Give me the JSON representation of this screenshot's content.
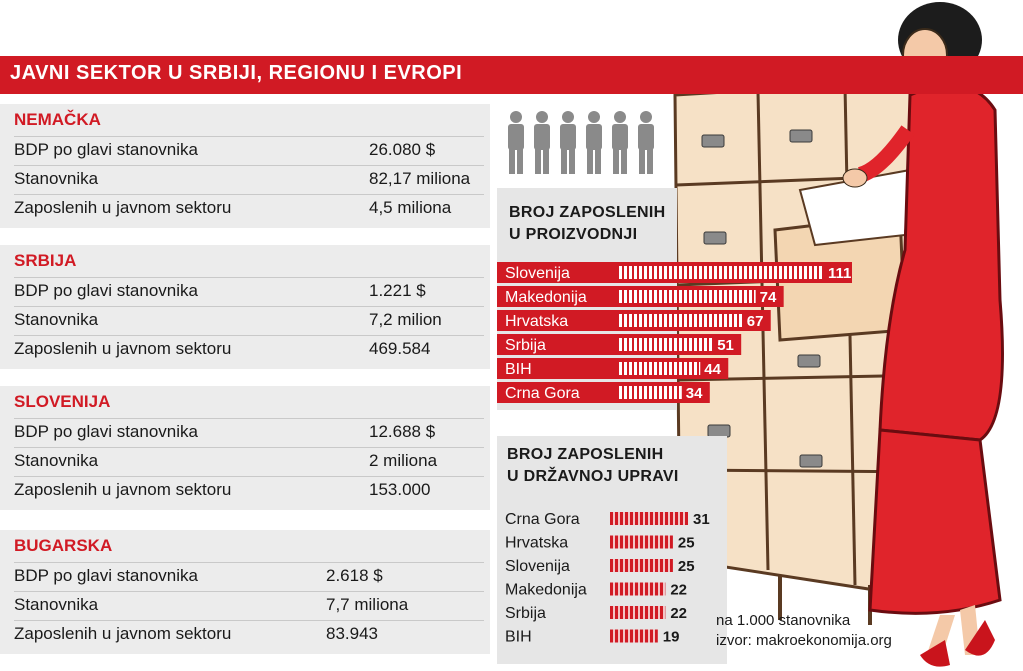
{
  "header": {
    "title": "JAVNI SEKTOR U SRBIJI, REGIONU I EVROPI"
  },
  "countries": [
    {
      "name": "NEMAČKA",
      "rows": [
        {
          "label": "BDP po glavi  stanovnika",
          "value": "26.080 $"
        },
        {
          "label": "Stanovnika",
          "value": "82,17 miliona"
        },
        {
          "label": "Zaposlenih u javnom sektoru",
          "value": "4,5 miliona"
        }
      ]
    },
    {
      "name": "SRBIJA",
      "rows": [
        {
          "label": "BDP po glavi stanovnika",
          "value": "1.221 $"
        },
        {
          "label": "Stanovnika",
          "value": "7,2 milion"
        },
        {
          "label": "Zaposlenih u javnom sektoru",
          "value": "469.584"
        }
      ]
    },
    {
      "name": "SLOVENIJA",
      "rows": [
        {
          "label": "BDP po glavi stanovnika",
          "value": "12.688 $"
        },
        {
          "label": "Stanovnika",
          "value": "2 miliona"
        },
        {
          "label": "Zaposlenih u javnom sektoru",
          "value": "153.000"
        }
      ]
    },
    {
      "name": "BUGARSKA",
      "rows": [
        {
          "label": "BDP po glavi stanovnika",
          "value": "2.618 $"
        },
        {
          "label": "Stanovnika",
          "value": "7,7 miliona"
        },
        {
          "label": "Zaposlenih u javnom sektoru",
          "value": "83.943"
        }
      ]
    }
  ],
  "footnote": {
    "unit": "na 1.000 stanovnika",
    "source": "izvor: makroekonomija.org"
  },
  "colors": {
    "accent": "#d11a24",
    "panel": "#ececec",
    "dress": "#e0242b",
    "cabinet": "#f6e1c6"
  },
  "chart_data": [
    {
      "type": "bar",
      "title": "BROJ ZAPOSLENIH U PROIZVODNJI",
      "title_lines": [
        "BROJ ZAPOSLENIH",
        "U PROIZVODNJI"
      ],
      "categories": [
        "Slovenija",
        "Makedonija",
        "Hrvatska",
        "Srbija",
        "BIH",
        "Crna Gora"
      ],
      "values": [
        111,
        74,
        67,
        51,
        44,
        34
      ],
      "orientation": "horizontal",
      "grid": false,
      "legend": "none"
    },
    {
      "type": "bar",
      "title": "BROJ ZAPOSLENIH U DRŽAVNOJ UPRAVI",
      "title_lines": [
        "BROJ ZAPOSLENIH",
        "U DRŽAVNOJ UPRAVI"
      ],
      "categories": [
        "Crna Gora",
        "Hrvatska",
        "Slovenija",
        "Makedonija",
        "Srbija",
        "BIH"
      ],
      "values": [
        31,
        25,
        25,
        22,
        22,
        19
      ],
      "orientation": "horizontal",
      "grid": false,
      "legend": "none"
    }
  ]
}
